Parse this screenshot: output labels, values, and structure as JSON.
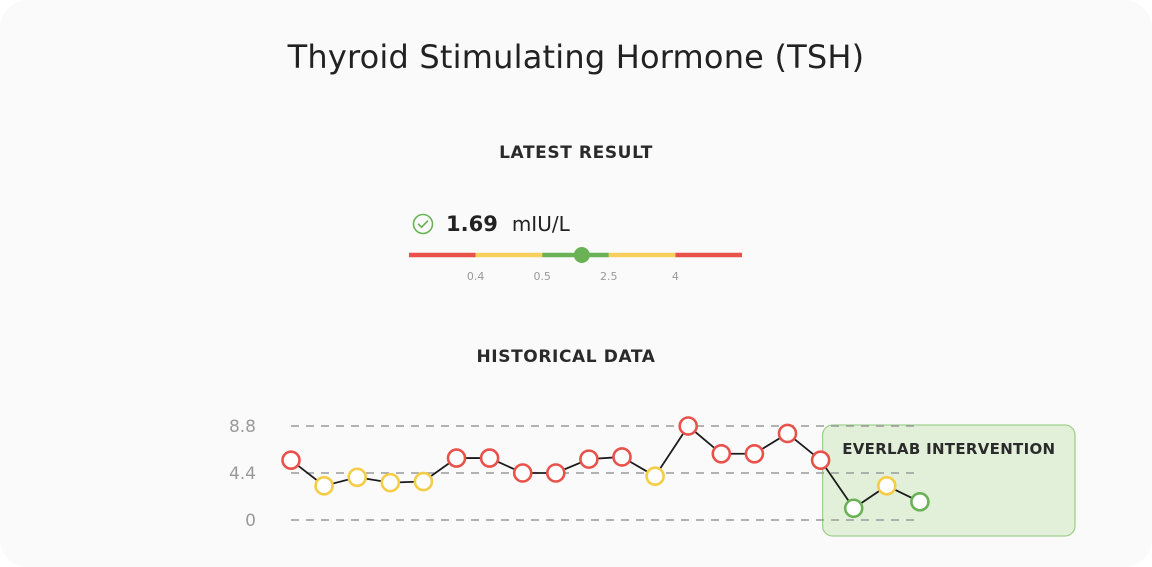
{
  "title": "Thyroid Stimulating Hormone (TSH)",
  "latest": {
    "label": "LATEST RESULT",
    "value": "1.69",
    "unit": "mIU/L",
    "value_num": 1.69,
    "status_icon": "check-circle-icon"
  },
  "range_bar": {
    "tick_labels": [
      "0.4",
      "0.5",
      "2.5",
      "4"
    ],
    "segments": [
      {
        "status": "out-of-range",
        "color": "#e8524a"
      },
      {
        "status": "borderline",
        "color": "#f7d15c"
      },
      {
        "status": "optimal",
        "color": "#6ab255"
      },
      {
        "status": "borderline",
        "color": "#f7d15c"
      },
      {
        "status": "out-of-range",
        "color": "#e8524a"
      }
    ]
  },
  "history_label": "HISTORICAL DATA",
  "chart_data": {
    "type": "line",
    "xlabel": "",
    "ylabel": "",
    "yticks": [
      "8.8",
      "4.4",
      "0"
    ],
    "ylim": [
      0,
      8.8
    ],
    "grid": "dashed horizontal at ticks",
    "series": [
      {
        "values": [
          5.6,
          3.2,
          4.0,
          3.5,
          3.6,
          5.8,
          5.8,
          4.4,
          4.4,
          5.7,
          5.9,
          4.1,
          8.8,
          6.2,
          6.2,
          8.1,
          5.6,
          1.1,
          3.2,
          1.7
        ],
        "status": [
          "red",
          "yellow",
          "yellow",
          "yellow",
          "yellow",
          "red",
          "red",
          "red",
          "red",
          "red",
          "red",
          "yellow",
          "red",
          "red",
          "red",
          "red",
          "red",
          "green",
          "yellow",
          "green"
        ]
      }
    ],
    "status_colors": {
      "red": "#e8524a",
      "yellow": "#f5cc45",
      "green": "#6ab255"
    },
    "annotation": {
      "label": "EVERLAB INTERVENTION",
      "from_index": 16,
      "fill": "#e2f0da",
      "border": "#9fd08e"
    }
  }
}
